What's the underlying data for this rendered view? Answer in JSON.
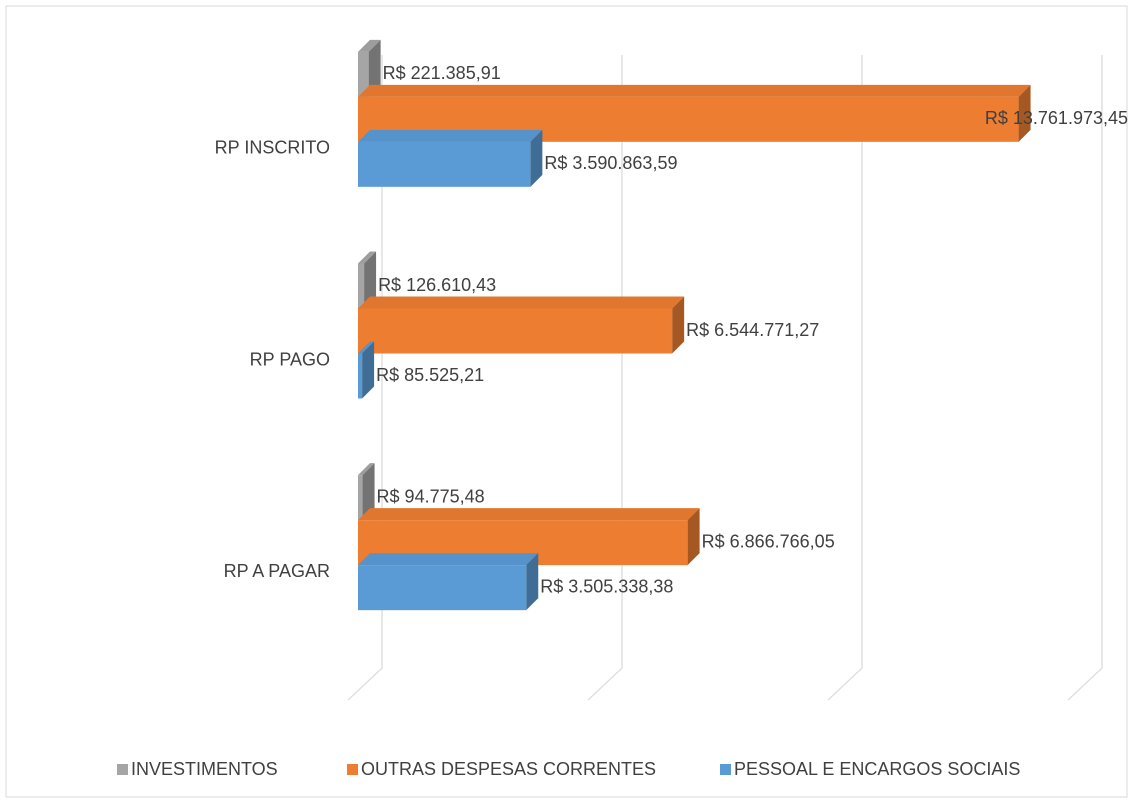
{
  "chart_data": {
    "type": "bar",
    "orientation": "horizontal",
    "three_d": true,
    "categories": [
      "RP INSCRITO",
      "RP PAGO",
      "RP A PAGAR"
    ],
    "series": [
      {
        "name": "INVESTIMENTOS",
        "color": "#a5a5a5",
        "values": [
          221385.91,
          126610.43,
          94775.48
        ],
        "value_labels": [
          "R$ 221.385,91",
          "R$ 126.610,43",
          "R$ 94.775,48"
        ]
      },
      {
        "name": "OUTRAS DESPESAS CORRENTES",
        "color": "#ed7d31",
        "values": [
          13761973.45,
          6544771.27,
          6866766.05
        ],
        "value_labels": [
          "R$ 13.761.973,45",
          "R$ 6.544.771,27",
          "R$ 6.866.766,05"
        ]
      },
      {
        "name": "PESSOAL E ENCARGOS SOCIAIS",
        "color": "#5b9bd5",
        "values": [
          3590863.59,
          85525.21,
          3505338.38
        ],
        "value_labels": [
          "R$ 3.590.863,59",
          "R$ 85.525,21",
          "R$ 3.505.338,38"
        ]
      }
    ],
    "xlim": [
      0,
      15000000
    ],
    "xticks": [
      0,
      5000000,
      10000000,
      15000000
    ],
    "grid": true,
    "legend": "bottom"
  }
}
